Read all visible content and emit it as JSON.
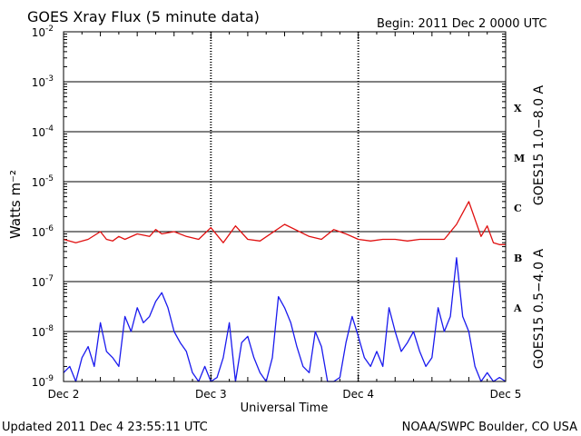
{
  "header": {
    "title": "GOES Xray Flux (5 minute data)",
    "begin": "Begin:  2011 Dec 2 0000 UTC"
  },
  "footer": {
    "updated": "Updated 2011 Dec  4 23:55:11 UTC",
    "source": "NOAA/SWPC Boulder, CO USA"
  },
  "chart_data": {
    "type": "line",
    "title": "GOES Xray Flux (5 minute data)",
    "xlabel": "Universal Time",
    "ylabel": "Watts m⁻²",
    "yscale": "log",
    "ylim": [
      1e-09,
      0.01
    ],
    "xlim": [
      "2011-12-02T00:00Z",
      "2011-12-05T00:00Z"
    ],
    "x_ticks": [
      {
        "value": "2011-12-02",
        "label": "Dec 2"
      },
      {
        "value": "2011-12-03",
        "label": "Dec 3"
      },
      {
        "value": "2011-12-04",
        "label": "Dec 4"
      },
      {
        "value": "2011-12-05",
        "label": "Dec 5"
      }
    ],
    "y_ticks": [
      {
        "value": 1e-09,
        "base": "10",
        "exp": "-9"
      },
      {
        "value": 1e-08,
        "base": "10",
        "exp": "-8"
      },
      {
        "value": 1e-07,
        "base": "10",
        "exp": "-7"
      },
      {
        "value": 1e-06,
        "base": "10",
        "exp": "-6"
      },
      {
        "value": 1e-05,
        "base": "10",
        "exp": "-5"
      },
      {
        "value": 0.0001,
        "base": "10",
        "exp": "-4"
      },
      {
        "value": 0.001,
        "base": "10",
        "exp": "-3"
      },
      {
        "value": 0.01,
        "base": "10",
        "exp": "-2"
      }
    ],
    "flare_classes": [
      {
        "label": "A",
        "value": 3e-08
      },
      {
        "label": "B",
        "value": 3e-07
      },
      {
        "label": "C",
        "value": 3e-06
      },
      {
        "label": "M",
        "value": 3e-05
      },
      {
        "label": "X",
        "value": 0.0003
      }
    ],
    "grid": true,
    "series": [
      {
        "name": "GOES15 1.0−8.0 A",
        "color": "#e01010",
        "x_hours": [
          0,
          2,
          4,
          6,
          7,
          8,
          9,
          10,
          12,
          14,
          15,
          16,
          18,
          20,
          22,
          24,
          26,
          28,
          30,
          32,
          36,
          40,
          42,
          44,
          46,
          48,
          50,
          52,
          54,
          56,
          58,
          60,
          62,
          64,
          66,
          68,
          69,
          70,
          71,
          72
        ],
        "values": [
          7e-07,
          6e-07,
          7e-07,
          1e-06,
          7e-07,
          6.5e-07,
          8e-07,
          7e-07,
          9e-07,
          8e-07,
          1.1e-06,
          9e-07,
          1e-06,
          8e-07,
          7e-07,
          1.2e-06,
          6e-07,
          1.3e-06,
          7e-07,
          6.5e-07,
          1.4e-06,
          8e-07,
          7e-07,
          1.1e-06,
          9e-07,
          7e-07,
          6.5e-07,
          7e-07,
          7e-07,
          6.5e-07,
          7e-07,
          7e-07,
          7e-07,
          1.4e-06,
          4e-06,
          8e-07,
          1.3e-06,
          6e-07,
          5.5e-07,
          5.5e-07
        ]
      },
      {
        "name": "GOES15 0.5−4.0 A",
        "color": "#1a1aee",
        "x_hours": [
          0,
          1,
          2,
          3,
          4,
          5,
          6,
          7,
          8,
          9,
          10,
          11,
          12,
          13,
          14,
          15,
          16,
          17,
          18,
          19,
          20,
          21,
          22,
          23,
          24,
          25,
          26,
          27,
          28,
          29,
          30,
          31,
          32,
          33,
          34,
          35,
          36,
          37,
          38,
          39,
          40,
          41,
          42,
          43,
          44,
          45,
          46,
          47,
          48,
          49,
          50,
          51,
          52,
          53,
          54,
          55,
          56,
          57,
          58,
          59,
          60,
          61,
          62,
          63,
          64,
          65,
          66,
          67,
          68,
          69,
          70,
          71,
          72
        ],
        "values": [
          1.5e-09,
          2e-09,
          1e-09,
          3e-09,
          5e-09,
          2e-09,
          1.5e-08,
          4e-09,
          3e-09,
          2e-09,
          2e-08,
          1e-08,
          3e-08,
          1.5e-08,
          2e-08,
          4e-08,
          6e-08,
          3e-08,
          1e-08,
          6e-09,
          4e-09,
          1.5e-09,
          1e-09,
          2e-09,
          1e-09,
          1.2e-09,
          3e-09,
          1.5e-08,
          1e-09,
          6e-09,
          8e-09,
          3e-09,
          1.5e-09,
          1e-09,
          3e-09,
          5e-08,
          3e-08,
          1.5e-08,
          5e-09,
          2e-09,
          1.5e-09,
          1e-08,
          5e-09,
          1e-09,
          1e-09,
          1.2e-09,
          6e-09,
          2e-08,
          8e-09,
          3e-09,
          2e-09,
          4e-09,
          2e-09,
          3e-08,
          1e-08,
          4e-09,
          6e-09,
          1e-08,
          4e-09,
          2e-09,
          3e-09,
          3e-08,
          1e-08,
          2e-08,
          3e-07,
          2e-08,
          1e-08,
          2e-09,
          1e-09,
          1.5e-09,
          1e-09,
          1.2e-09,
          1e-09
        ]
      }
    ]
  }
}
